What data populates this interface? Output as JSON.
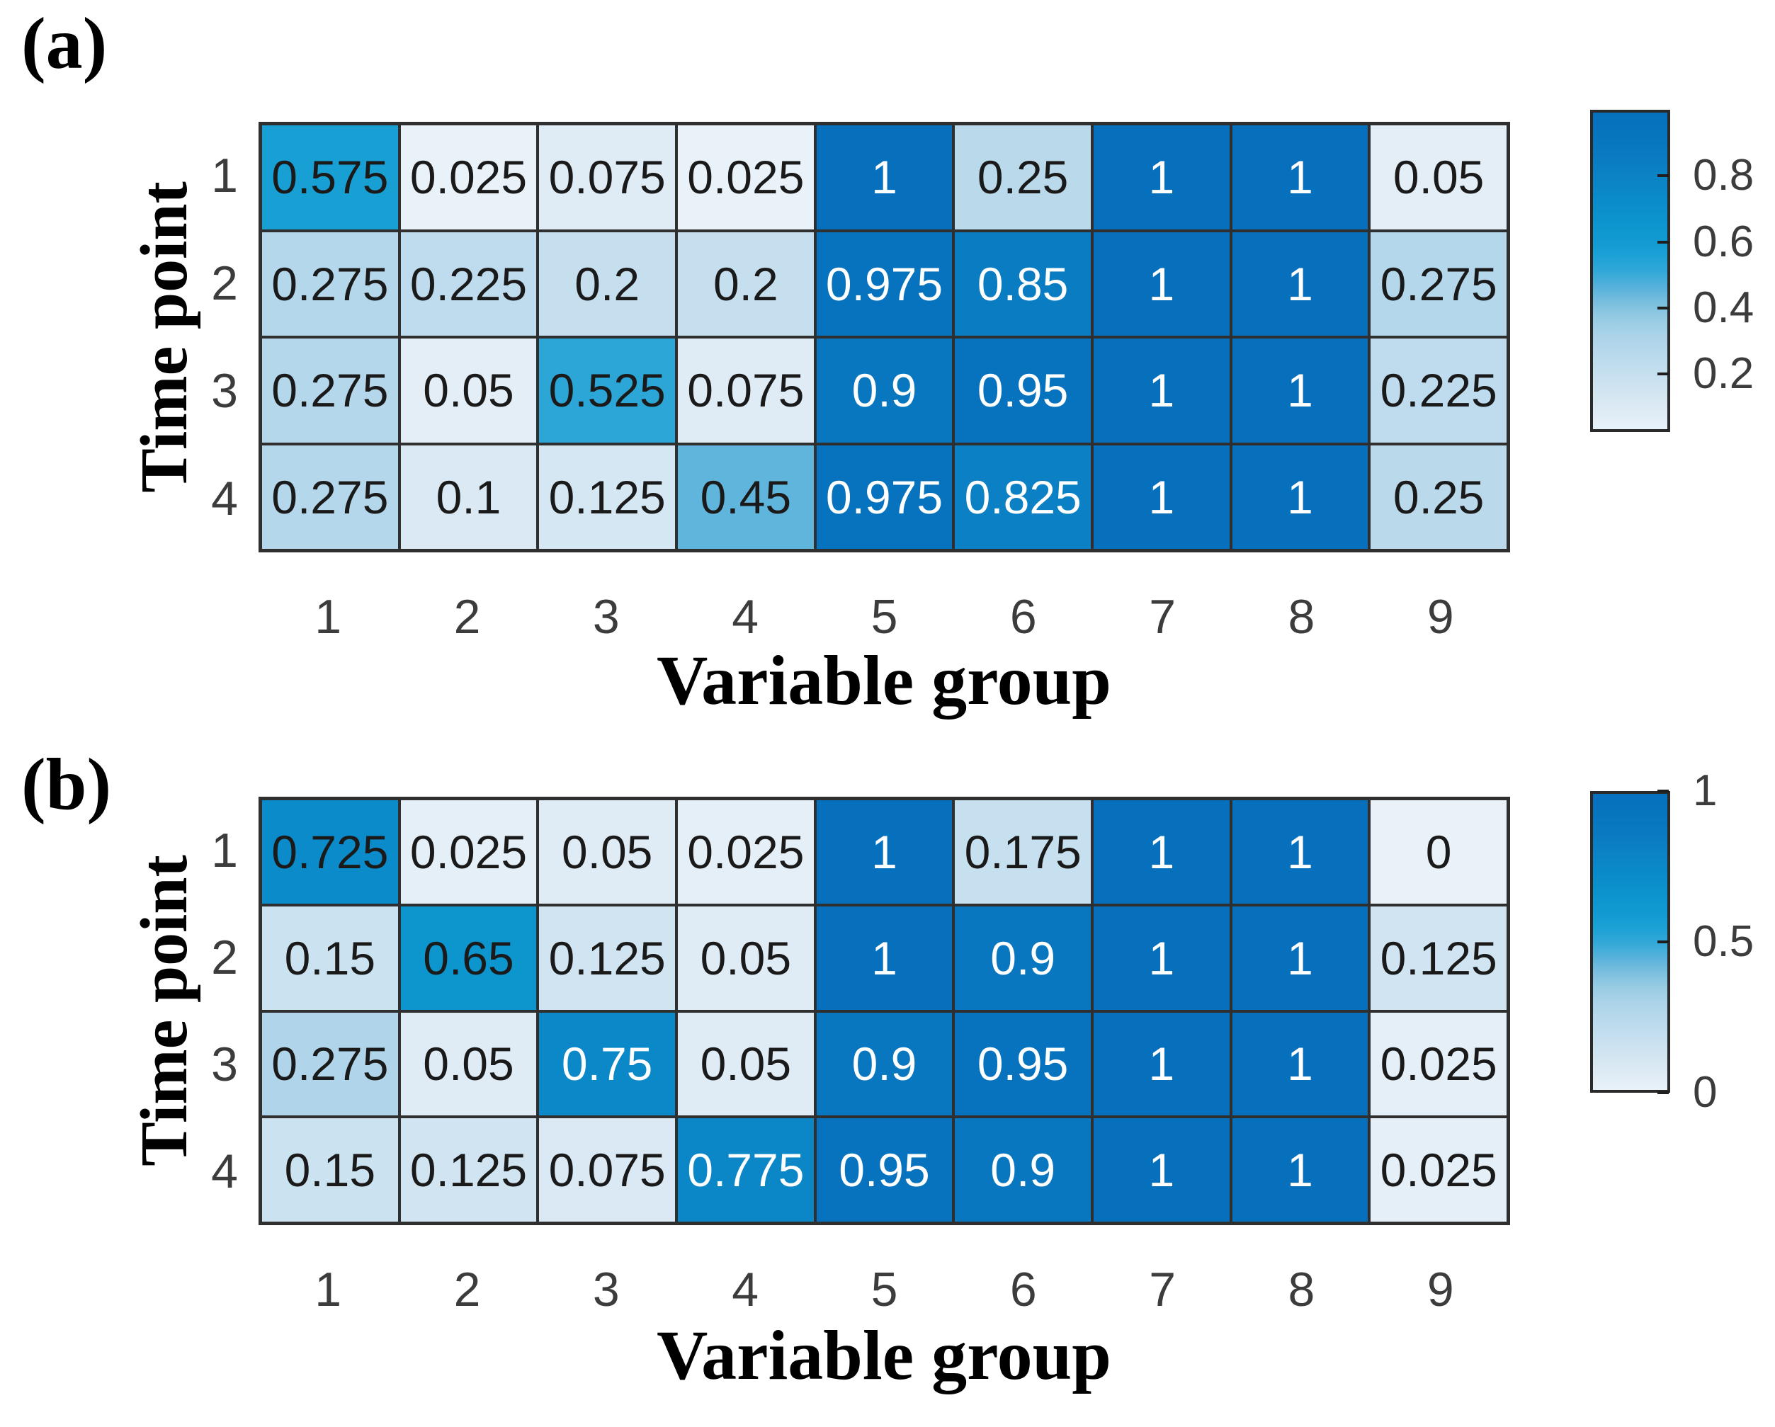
{
  "figure": {
    "background": "#ffffff",
    "grid_line_color": "#2f2f2f",
    "tick_text_color": "#3c3c3c",
    "axis_label_color": "#000000",
    "cell_text_dark": "#1a1a1a",
    "cell_text_light": "#ffffff",
    "max_blue": "#0670bc",
    "min_blue": "#e9f2f9"
  },
  "colormap_anchors": [
    "#E9F2F9",
    "#DFEBF5",
    "#D5E7F2",
    "#CBE2F0",
    "#C0DDEE",
    "#B6D8EB",
    "#A9D2E8",
    "#96CBE4",
    "#79BEDE",
    "#55B1DB",
    "#30A8D8",
    "#1BA1D5",
    "#1199D1",
    "#0D95CE",
    "#0B8ECB",
    "#0A88C8",
    "#0B83C5",
    "#0A7CC2",
    "#0877C0",
    "#0773BE",
    "#0670BC"
  ],
  "chart_data": [
    {
      "panel": "(a)",
      "type": "heatmap",
      "xlabel": "Variable group",
      "ylabel": "Time point",
      "x_categories": [
        "1",
        "2",
        "3",
        "4",
        "5",
        "6",
        "7",
        "8",
        "9"
      ],
      "y_categories": [
        "1",
        "2",
        "3",
        "4"
      ],
      "values": [
        [
          0.575,
          0.025,
          0.075,
          0.025,
          1,
          0.25,
          1,
          1,
          0.05
        ],
        [
          0.275,
          0.225,
          0.2,
          0.2,
          0.975,
          0.85,
          1,
          1,
          0.275
        ],
        [
          0.275,
          0.05,
          0.525,
          0.075,
          0.9,
          0.95,
          1,
          1,
          0.225
        ],
        [
          0.275,
          0.1,
          0.125,
          0.45,
          0.975,
          0.825,
          1,
          1,
          0.25
        ]
      ],
      "color_limits": [
        0.025,
        1
      ],
      "colorbar_ticks": [
        {
          "value": 0.8,
          "label": "0.8"
        },
        {
          "value": 0.6,
          "label": "0.6"
        },
        {
          "value": 0.4,
          "label": "0.4"
        },
        {
          "value": 0.2,
          "label": "0.2"
        }
      ],
      "legend_position": "right",
      "grid": true
    },
    {
      "panel": "(b)",
      "type": "heatmap",
      "xlabel": "Variable group",
      "ylabel": "Time point",
      "x_categories": [
        "1",
        "2",
        "3",
        "4",
        "5",
        "6",
        "7",
        "8",
        "9"
      ],
      "y_categories": [
        "1",
        "2",
        "3",
        "4"
      ],
      "values": [
        [
          0.725,
          0.025,
          0.05,
          0.025,
          1,
          0.175,
          1,
          1,
          0
        ],
        [
          0.15,
          0.65,
          0.125,
          0.05,
          1,
          0.9,
          1,
          1,
          0.125
        ],
        [
          0.275,
          0.05,
          0.75,
          0.05,
          0.9,
          0.95,
          1,
          1,
          0.025
        ],
        [
          0.15,
          0.125,
          0.075,
          0.775,
          0.95,
          0.9,
          1,
          1,
          0.025
        ]
      ],
      "color_limits": [
        0,
        1
      ],
      "colorbar_ticks": [
        {
          "value": 1,
          "label": "1"
        },
        {
          "value": 0.5,
          "label": "0.5"
        },
        {
          "value": 0,
          "label": "0"
        }
      ],
      "legend_position": "right",
      "grid": true
    }
  ]
}
